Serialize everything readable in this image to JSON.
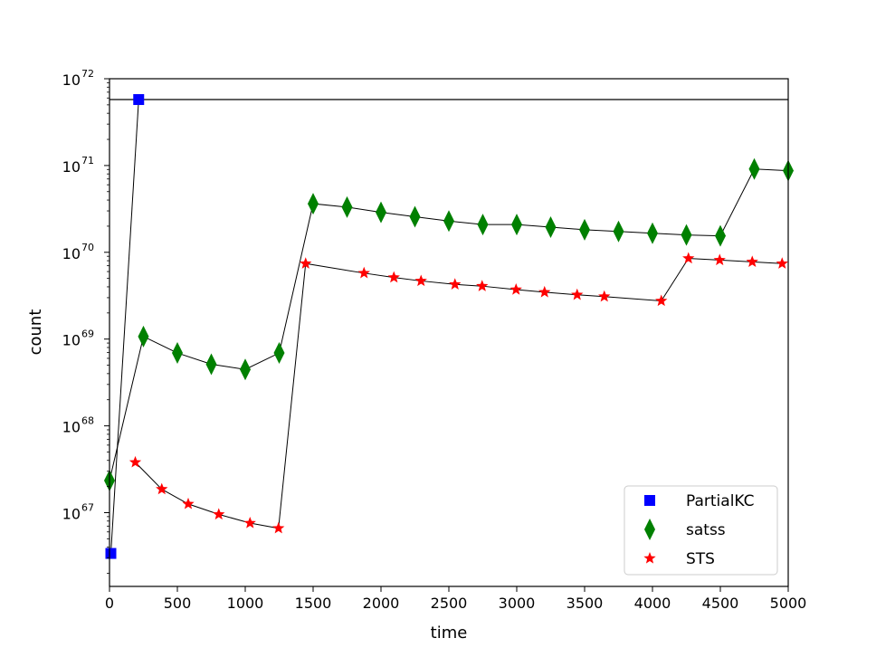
{
  "chart_data": {
    "type": "scatter",
    "xlabel": "time",
    "ylabel": "count",
    "xlim": [
      0,
      5000
    ],
    "yscale": "log",
    "ylim_log10": [
      66.15,
      72.0
    ],
    "x_ticks": [
      0,
      500,
      1000,
      1500,
      2000,
      2500,
      3000,
      3500,
      4000,
      4500,
      5000
    ],
    "y_ticks": [
      {
        "base": "10",
        "exp": "67",
        "log10": 67
      },
      {
        "base": "10",
        "exp": "68",
        "log10": 68
      },
      {
        "base": "10",
        "exp": "69",
        "log10": 69
      },
      {
        "base": "10",
        "exp": "70",
        "log10": 70
      },
      {
        "base": "10",
        "exp": "71",
        "log10": 71
      },
      {
        "base": "10",
        "exp": "72",
        "log10": 72
      }
    ],
    "horizontal_line_log10": 71.76,
    "legend_position": "lower-right",
    "series": [
      {
        "name": "PartialKC",
        "marker": "square",
        "color": "#0000ff",
        "points": [
          {
            "x": 10,
            "log10": 66.53
          },
          {
            "x": 215,
            "log10": 71.76
          }
        ]
      },
      {
        "name": "satss",
        "marker": "thin_diamond",
        "color": "#008000",
        "points": [
          {
            "x": 0,
            "log10": 67.37
          },
          {
            "x": 250,
            "log10": 69.03
          },
          {
            "x": 500,
            "log10": 68.84
          },
          {
            "x": 750,
            "log10": 68.71
          },
          {
            "x": 1000,
            "log10": 68.65
          },
          {
            "x": 1250,
            "log10": 68.84
          },
          {
            "x": 1500,
            "log10": 70.56
          },
          {
            "x": 1750,
            "log10": 70.52
          },
          {
            "x": 2000,
            "log10": 70.46
          },
          {
            "x": 2250,
            "log10": 70.41
          },
          {
            "x": 2500,
            "log10": 70.36
          },
          {
            "x": 2750,
            "log10": 70.32
          },
          {
            "x": 3000,
            "log10": 70.32
          },
          {
            "x": 3250,
            "log10": 70.29
          },
          {
            "x": 3500,
            "log10": 70.26
          },
          {
            "x": 3750,
            "log10": 70.24
          },
          {
            "x": 4000,
            "log10": 70.22
          },
          {
            "x": 4250,
            "log10": 70.2
          },
          {
            "x": 4500,
            "log10": 70.19
          },
          {
            "x": 4750,
            "log10": 70.96
          },
          {
            "x": 5000,
            "log10": 70.94
          }
        ]
      },
      {
        "name": "STS",
        "marker": "star",
        "color": "#ff0000",
        "points": [
          {
            "x": 190,
            "log10": 67.58
          },
          {
            "x": 385,
            "log10": 67.27
          },
          {
            "x": 580,
            "log10": 67.1
          },
          {
            "x": 805,
            "log10": 66.98
          },
          {
            "x": 1035,
            "log10": 66.88
          },
          {
            "x": 1245,
            "log10": 66.82
          },
          {
            "x": 1445,
            "log10": 69.87
          },
          {
            "x": 1875,
            "log10": 69.76
          },
          {
            "x": 2095,
            "log10": 69.71
          },
          {
            "x": 2295,
            "log10": 69.67
          },
          {
            "x": 2545,
            "log10": 69.63
          },
          {
            "x": 2745,
            "log10": 69.61
          },
          {
            "x": 2995,
            "log10": 69.57
          },
          {
            "x": 3205,
            "log10": 69.54
          },
          {
            "x": 3445,
            "log10": 69.51
          },
          {
            "x": 3645,
            "log10": 69.49
          },
          {
            "x": 4065,
            "log10": 69.44
          },
          {
            "x": 4265,
            "log10": 69.93
          },
          {
            "x": 4495,
            "log10": 69.91
          },
          {
            "x": 4735,
            "log10": 69.89
          },
          {
            "x": 4955,
            "log10": 69.87
          }
        ]
      }
    ]
  }
}
